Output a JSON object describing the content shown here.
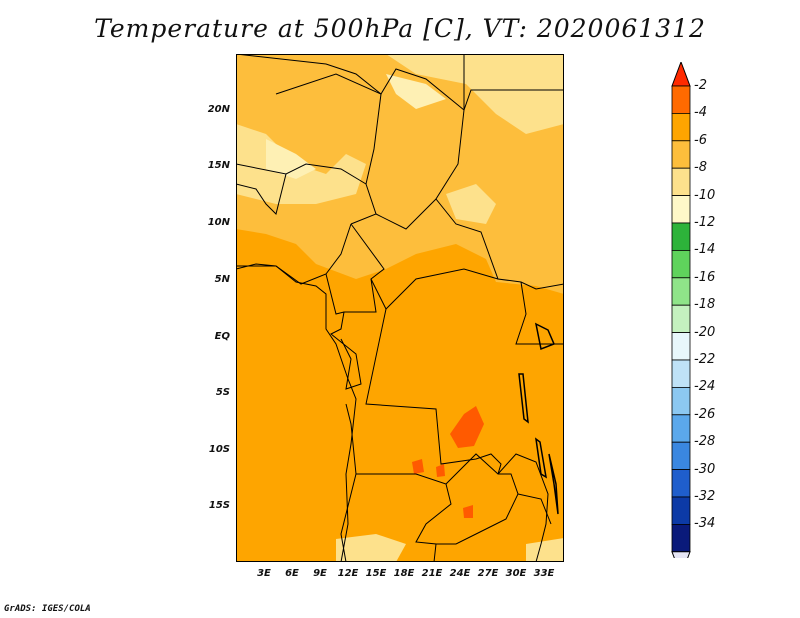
{
  "title": "Temperature at 500hPa [C], VT: 2020061312",
  "credit": "GrADS: IGES/COLA",
  "map": {
    "lat_labels": [
      "20N",
      "15N",
      "10N",
      "5N",
      "EQ",
      "5S",
      "10S",
      "15S"
    ],
    "lon_labels": [
      "3E",
      "6E",
      "9E",
      "12E",
      "15E",
      "18E",
      "21E",
      "24E",
      "27E",
      "30E",
      "33E"
    ],
    "background_color": "#fea500",
    "field_colors": {
      "minus_2_to_0": "#ff5a00",
      "minus_4_to_minus_2": "#fea500",
      "minus_6_to_minus_4": "#fdbe3c",
      "minus_8_to_minus_6": "#fde18c",
      "below_minus_8": "#fef0b4"
    },
    "border_color": "#000000"
  },
  "colorbar": {
    "labels": [
      "-2",
      "-4",
      "-6",
      "-8",
      "-10",
      "-12",
      "-14",
      "-16",
      "-18",
      "-20",
      "-22",
      "-24",
      "-26",
      "-28",
      "-30",
      "-32",
      "-34"
    ],
    "colors": [
      "#ff2a00",
      "#ff6a00",
      "#fea500",
      "#fdbe3c",
      "#fde18c",
      "#fef8c8",
      "#2db33a",
      "#5fd35c",
      "#8fe489",
      "#c4f1bf",
      "#e8f7fb",
      "#bfe2f7",
      "#8cc8f1",
      "#5ba8eb",
      "#3a87e0",
      "#1f5ecc",
      "#0c3aa6",
      "#0a1a7a",
      "#e6e6f5"
    ]
  }
}
